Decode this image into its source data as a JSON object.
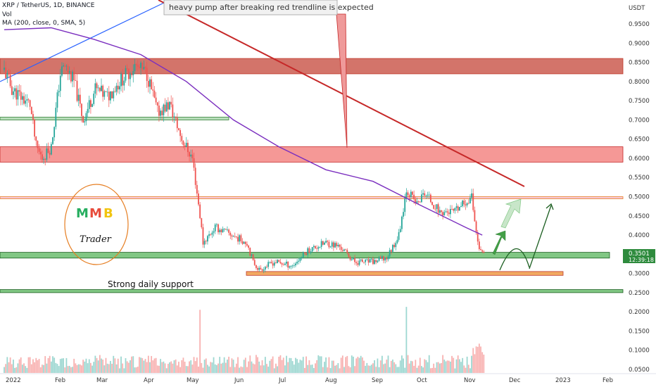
{
  "header": {
    "symbol": "XRP / TetherUS, 1D, BINANCE",
    "vol": "Vol",
    "ma": "MA (200, close, 0, SMA, 5)"
  },
  "currency": "USDT",
  "price_badge": {
    "price": "0.3501",
    "countdown": "12:39:18"
  },
  "annotations": {
    "callout": "heavy pump after breaking red trendline is expected",
    "support": "Strong daily support",
    "logo_letters": [
      "M",
      "M",
      "B"
    ],
    "logo_word": "Trader"
  },
  "colors": {
    "up": "#26a69a",
    "down": "#ef5350",
    "ma": "#7b2fbf",
    "trendline": "#c62828",
    "blue_trendline": "#2962ff",
    "resistance_zone": "#c0392b",
    "support_zone": "#2e8b3d",
    "orange_zone": "#e67e22",
    "arrow": "#2e7d32"
  },
  "chart_data": {
    "type": "candlestick",
    "title": "XRP / TetherUS, 1D, BINANCE",
    "ylabel": "USDT",
    "y_ticks": [
      "0.9500",
      "0.9000",
      "0.8500",
      "0.8000",
      "0.7500",
      "0.7000",
      "0.6500",
      "0.6000",
      "0.5500",
      "0.5000",
      "0.4500",
      "0.4000",
      "0.3500",
      "0.3000",
      "0.2500",
      "0.2000",
      "0.1500",
      "0.1000",
      "0.0500"
    ],
    "x_ticks": [
      "2022",
      "Feb",
      "Mar",
      "Apr",
      "May",
      "Jun",
      "Jul",
      "Aug",
      "Sep",
      "Oct",
      "Nov",
      "Dec",
      "2023",
      "Feb"
    ],
    "ylim": [
      0.04,
      0.98
    ],
    "price_path": [
      {
        "date": "2022-01-01",
        "close": 0.83
      },
      {
        "date": "2022-01-06",
        "close": 0.78
      },
      {
        "date": "2022-01-12",
        "close": 0.76
      },
      {
        "date": "2022-01-18",
        "close": 0.74
      },
      {
        "date": "2022-01-22",
        "close": 0.63
      },
      {
        "date": "2022-01-26",
        "close": 0.6
      },
      {
        "date": "2022-02-01",
        "close": 0.63
      },
      {
        "date": "2022-02-07",
        "close": 0.82
      },
      {
        "date": "2022-02-10",
        "close": 0.84
      },
      {
        "date": "2022-02-16",
        "close": 0.8
      },
      {
        "date": "2022-02-22",
        "close": 0.7
      },
      {
        "date": "2022-03-02",
        "close": 0.78
      },
      {
        "date": "2022-03-10",
        "close": 0.76
      },
      {
        "date": "2022-03-18",
        "close": 0.8
      },
      {
        "date": "2022-03-28",
        "close": 0.84
      },
      {
        "date": "2022-04-05",
        "close": 0.82
      },
      {
        "date": "2022-04-12",
        "close": 0.72
      },
      {
        "date": "2022-04-20",
        "close": 0.74
      },
      {
        "date": "2022-04-28",
        "close": 0.65
      },
      {
        "date": "2022-05-05",
        "close": 0.6
      },
      {
        "date": "2022-05-10",
        "close": 0.45
      },
      {
        "date": "2022-05-12",
        "close": 0.38
      },
      {
        "date": "2022-05-20",
        "close": 0.42
      },
      {
        "date": "2022-05-31",
        "close": 0.4
      },
      {
        "date": "2022-06-10",
        "close": 0.38
      },
      {
        "date": "2022-06-14",
        "close": 0.33
      },
      {
        "date": "2022-06-18",
        "close": 0.31
      },
      {
        "date": "2022-06-28",
        "close": 0.33
      },
      {
        "date": "2022-07-10",
        "close": 0.32
      },
      {
        "date": "2022-07-20",
        "close": 0.36
      },
      {
        "date": "2022-08-01",
        "close": 0.38
      },
      {
        "date": "2022-08-10",
        "close": 0.37
      },
      {
        "date": "2022-08-20",
        "close": 0.33
      },
      {
        "date": "2022-09-01",
        "close": 0.33
      },
      {
        "date": "2022-09-10",
        "close": 0.34
      },
      {
        "date": "2022-09-18",
        "close": 0.4
      },
      {
        "date": "2022-09-23",
        "close": 0.52
      },
      {
        "date": "2022-09-30",
        "close": 0.48
      },
      {
        "date": "2022-10-05",
        "close": 0.51
      },
      {
        "date": "2022-10-15",
        "close": 0.46
      },
      {
        "date": "2022-10-25",
        "close": 0.46
      },
      {
        "date": "2022-11-05",
        "close": 0.5
      },
      {
        "date": "2022-11-09",
        "close": 0.38
      },
      {
        "date": "2022-11-12",
        "close": 0.35
      }
    ],
    "ma200_path": [
      {
        "date": "2022-01-01",
        "value": 0.935
      },
      {
        "date": "2022-02-01",
        "value": 0.94
      },
      {
        "date": "2022-03-01",
        "value": 0.91
      },
      {
        "date": "2022-04-01",
        "value": 0.87
      },
      {
        "date": "2022-05-01",
        "value": 0.8
      },
      {
        "date": "2022-06-01",
        "value": 0.7
      },
      {
        "date": "2022-07-01",
        "value": 0.63
      },
      {
        "date": "2022-08-01",
        "value": 0.57
      },
      {
        "date": "2022-09-01",
        "value": 0.54
      },
      {
        "date": "2022-10-01",
        "value": 0.48
      },
      {
        "date": "2022-11-01",
        "value": 0.42
      },
      {
        "date": "2022-11-12",
        "value": 0.4
      }
    ],
    "zones": [
      {
        "name": "resistance-upper",
        "from": 0.82,
        "to": 0.86
      },
      {
        "name": "resistance-lower",
        "from": 0.59,
        "to": 0.63
      },
      {
        "name": "resistance-line",
        "from": 0.495,
        "to": 0.5
      },
      {
        "name": "support-green",
        "from": 0.34,
        "to": 0.355
      },
      {
        "name": "support-orange",
        "from": 0.295,
        "to": 0.305
      },
      {
        "name": "support-bottom",
        "from": 0.25,
        "to": 0.258
      },
      {
        "name": "support-left",
        "from": 0.7,
        "to": 0.707
      }
    ],
    "trendline_red": [
      {
        "date": "2022-04-01",
        "value": 0.99
      },
      {
        "date": "2022-11-20",
        "value": 0.53
      }
    ],
    "grid": false,
    "legend": "none"
  }
}
